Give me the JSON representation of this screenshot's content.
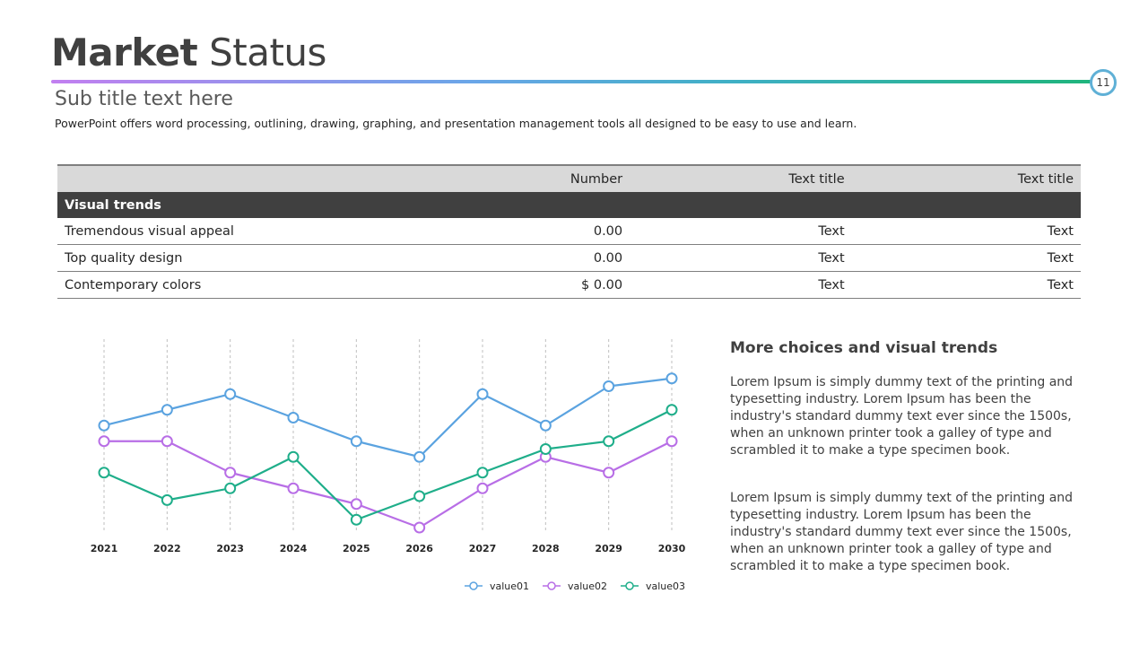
{
  "header": {
    "title_bold": "Market",
    "title_rest": "Status",
    "page_number": "11",
    "subtitle": "Sub title text here",
    "description": "PowerPoint offers word processing, outlining, drawing, graphing, and presentation management tools all designed to be easy to use and learn."
  },
  "table": {
    "headers": [
      "",
      "Number",
      "Text title",
      "Text title"
    ],
    "section_label": "Visual trends",
    "rows": [
      [
        "Tremendous visual appeal",
        "0.00",
        "Text",
        "Text"
      ],
      [
        "Top quality design",
        "0.00",
        "Text",
        "Text"
      ],
      [
        "Contemporary colors",
        "$ 0.00",
        "Text",
        "Text"
      ]
    ]
  },
  "side": {
    "heading": "More choices and visual trends",
    "paragraphs": [
      "Lorem Ipsum is simply dummy text of the printing and typesetting industry. Lorem Ipsum has been the industry's standard dummy text ever since the 1500s, when an unknown printer took a galley of type and scrambled it to make a type specimen book.",
      "Lorem Ipsum is simply dummy text of the printing and typesetting industry. Lorem Ipsum has been the industry's standard dummy text ever since the 1500s, when an unknown printer took a galley of type and scrambled it to make a type specimen book."
    ]
  },
  "chart_data": {
    "type": "line",
    "x": [
      "2021",
      "2022",
      "2023",
      "2024",
      "2025",
      "2026",
      "2027",
      "2028",
      "2029",
      "2030"
    ],
    "ylim": [
      0,
      24
    ],
    "grid": "vertical-dashed",
    "legend_position": "bottom-right",
    "series": [
      {
        "name": "value01",
        "color": "#5ba3e0",
        "values": [
          13,
          15,
          17,
          14,
          11,
          9,
          17,
          13,
          18,
          19
        ]
      },
      {
        "name": "value02",
        "color": "#b86ee6",
        "values": [
          11,
          11,
          7,
          5,
          3,
          0,
          5,
          9,
          7,
          11
        ]
      },
      {
        "name": "value03",
        "color": "#1fae8a",
        "values": [
          7,
          3.5,
          5,
          9,
          1,
          4,
          7,
          10,
          11,
          15
        ]
      }
    ]
  }
}
